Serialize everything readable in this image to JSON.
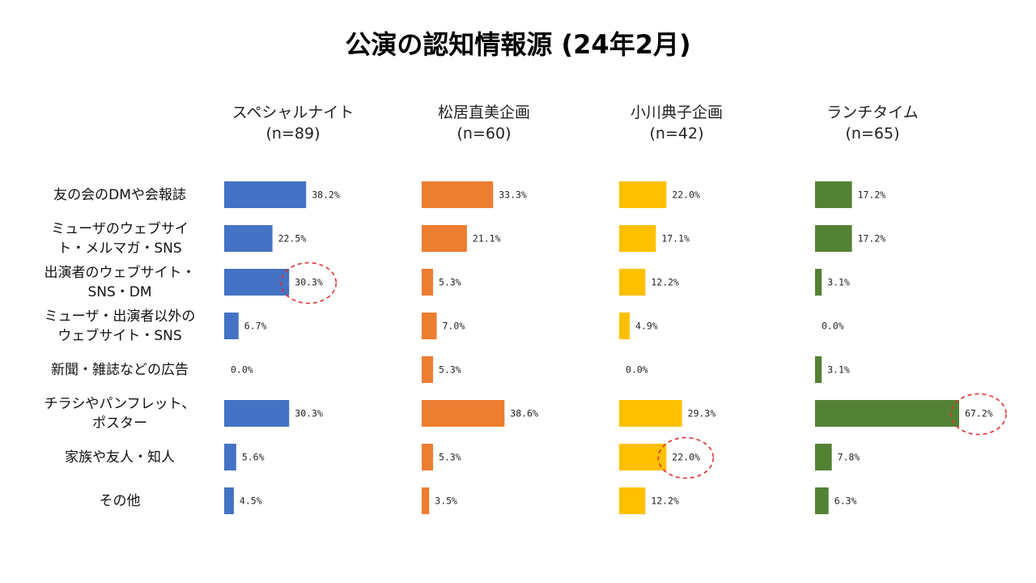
{
  "title": "公演の認知情報源 (24年2月)",
  "chart_data": {
    "type": "bar",
    "orientation": "horizontal",
    "categories": [
      [
        "友の会のDMや会報誌"
      ],
      [
        "ミューザのウェブサイ",
        "ト・メルマガ・SNS"
      ],
      [
        "出演者のウェブサイト・",
        "SNS・DM"
      ],
      [
        "ミューザ・出演者以外の",
        "ウェブサイト・SNS"
      ],
      [
        "新聞・雑誌などの広告"
      ],
      [
        "チラシやパンフレット、",
        "ポスター"
      ],
      [
        "家族や友人・知人"
      ],
      [
        "その他"
      ]
    ],
    "panels": [
      {
        "name": "スペシャルナイト",
        "n": "(n=89)",
        "color": "#4472C4",
        "values": [
          38.2,
          22.5,
          30.3,
          6.7,
          0.0,
          30.3,
          5.6,
          4.5
        ],
        "labels": [
          "38.2%",
          "22.5%",
          "30.3%",
          "6.7%",
          "0.0%",
          "30.3%",
          "5.6%",
          "4.5%"
        ],
        "highlight": [
          2
        ]
      },
      {
        "name": "松居直美企画",
        "n": "(n=60)",
        "color": "#ED7D31",
        "values": [
          33.3,
          21.1,
          5.3,
          7.0,
          5.3,
          38.6,
          5.3,
          3.5
        ],
        "labels": [
          "33.3%",
          "21.1%",
          "5.3%",
          "7.0%",
          "5.3%",
          "38.6%",
          "5.3%",
          "3.5%"
        ],
        "highlight": []
      },
      {
        "name": "小川典子企画",
        "n": "(n=42)",
        "color": "#FFC000",
        "values": [
          22.0,
          17.1,
          12.2,
          4.9,
          0.0,
          29.3,
          22.0,
          12.2
        ],
        "labels": [
          "22.0%",
          "17.1%",
          "12.2%",
          "4.9%",
          "0.0%",
          "29.3%",
          "22.0%",
          "12.2%"
        ],
        "highlight": [
          6
        ]
      },
      {
        "name": "ランチタイム",
        "n": "(n=65)",
        "color": "#548235",
        "values": [
          17.2,
          17.2,
          3.1,
          0.0,
          3.1,
          67.2,
          7.8,
          6.3
        ],
        "labels": [
          "17.2%",
          "17.2%",
          "3.1%",
          "0.0%",
          "3.1%",
          "67.2%",
          "7.8%",
          "6.3%"
        ],
        "highlight": [
          5
        ]
      }
    ]
  }
}
